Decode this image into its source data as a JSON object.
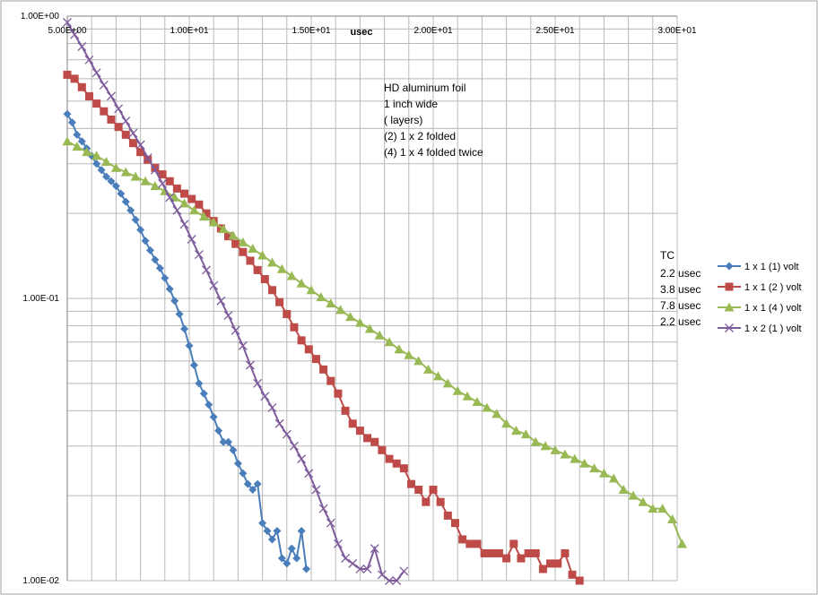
{
  "chart_data": {
    "type": "scatter",
    "title": "",
    "xlabel": "usec",
    "ylabel": "",
    "x_range": [
      5,
      30
    ],
    "y_range": [
      0.01,
      1
    ],
    "y_scale": "log",
    "grid": true,
    "legend_position": "right",
    "x_tick_labels": [
      "5.00E+00",
      "1.00E+01",
      "1.50E+01",
      "2.00E+01",
      "2.50E+01",
      "3.00E+01"
    ],
    "y_tick_labels": [
      "1.00E+00",
      "1.00E-01",
      "1.00E-02"
    ],
    "annotation_lines": [
      "HD aluminum foil",
      "1 inch wide",
      "( layers)",
      "(2) 1 x 2 folded",
      "(4) 1 x 4 folded twice"
    ],
    "tc": {
      "header": "TC",
      "values": [
        "2.2 usec",
        "3.8 usec",
        "7.8 usec",
        "2.2 usec"
      ]
    },
    "series": [
      {
        "name": "1 x 1 (1) volt",
        "color": "#4a7ebb",
        "marker": "diamond",
        "points": [
          [
            5.0,
            0.45
          ],
          [
            5.2,
            0.42
          ],
          [
            5.4,
            0.38
          ],
          [
            5.6,
            0.36
          ],
          [
            5.8,
            0.34
          ],
          [
            6.0,
            0.32
          ],
          [
            6.2,
            0.3
          ],
          [
            6.4,
            0.285
          ],
          [
            6.6,
            0.27
          ],
          [
            6.8,
            0.26
          ],
          [
            7.0,
            0.25
          ],
          [
            7.2,
            0.235
          ],
          [
            7.4,
            0.22
          ],
          [
            7.6,
            0.205
          ],
          [
            7.8,
            0.19
          ],
          [
            8.0,
            0.175
          ],
          [
            8.2,
            0.16
          ],
          [
            8.4,
            0.148
          ],
          [
            8.6,
            0.137
          ],
          [
            8.8,
            0.128
          ],
          [
            9.0,
            0.118
          ],
          [
            9.2,
            0.108
          ],
          [
            9.4,
            0.098
          ],
          [
            9.6,
            0.088
          ],
          [
            9.8,
            0.078
          ],
          [
            10.0,
            0.068
          ],
          [
            10.2,
            0.058
          ],
          [
            10.4,
            0.05
          ],
          [
            10.6,
            0.046
          ],
          [
            10.8,
            0.042
          ],
          [
            11.0,
            0.038
          ],
          [
            11.2,
            0.034
          ],
          [
            11.4,
            0.031
          ],
          [
            11.6,
            0.031
          ],
          [
            11.8,
            0.029
          ],
          [
            12.0,
            0.026
          ],
          [
            12.2,
            0.024
          ],
          [
            12.4,
            0.022
          ],
          [
            12.6,
            0.021
          ],
          [
            12.8,
            0.022
          ],
          [
            13.0,
            0.016
          ],
          [
            13.2,
            0.015
          ],
          [
            13.4,
            0.014
          ],
          [
            13.6,
            0.015
          ],
          [
            13.8,
            0.012
          ],
          [
            14.0,
            0.0115
          ],
          [
            14.2,
            0.013
          ],
          [
            14.4,
            0.012
          ],
          [
            14.6,
            0.015
          ],
          [
            14.8,
            0.011
          ]
        ]
      },
      {
        "name": "1 x 1 (2 ) volt",
        "color": "#be4b48",
        "marker": "square",
        "points": [
          [
            5.0,
            0.62
          ],
          [
            5.3,
            0.6
          ],
          [
            5.6,
            0.56
          ],
          [
            5.9,
            0.52
          ],
          [
            6.2,
            0.49
          ],
          [
            6.5,
            0.46
          ],
          [
            6.8,
            0.43
          ],
          [
            7.1,
            0.405
          ],
          [
            7.4,
            0.38
          ],
          [
            7.7,
            0.355
          ],
          [
            8.0,
            0.33
          ],
          [
            8.3,
            0.31
          ],
          [
            8.6,
            0.29
          ],
          [
            8.9,
            0.275
          ],
          [
            9.2,
            0.26
          ],
          [
            9.5,
            0.245
          ],
          [
            9.8,
            0.235
          ],
          [
            10.1,
            0.225
          ],
          [
            10.4,
            0.215
          ],
          [
            10.7,
            0.2
          ],
          [
            11.0,
            0.188
          ],
          [
            11.3,
            0.177
          ],
          [
            11.6,
            0.166
          ],
          [
            11.9,
            0.156
          ],
          [
            12.2,
            0.146
          ],
          [
            12.5,
            0.136
          ],
          [
            12.8,
            0.126
          ],
          [
            13.1,
            0.117
          ],
          [
            13.4,
            0.107
          ],
          [
            13.7,
            0.097
          ],
          [
            14.0,
            0.088
          ],
          [
            14.3,
            0.079
          ],
          [
            14.6,
            0.071
          ],
          [
            14.9,
            0.066
          ],
          [
            15.2,
            0.061
          ],
          [
            15.5,
            0.056
          ],
          [
            15.8,
            0.051
          ],
          [
            16.1,
            0.046
          ],
          [
            16.4,
            0.04
          ],
          [
            16.7,
            0.036
          ],
          [
            17.0,
            0.034
          ],
          [
            17.3,
            0.032
          ],
          [
            17.6,
            0.031
          ],
          [
            17.9,
            0.029
          ],
          [
            18.2,
            0.027
          ],
          [
            18.5,
            0.026
          ],
          [
            18.8,
            0.025
          ],
          [
            19.1,
            0.022
          ],
          [
            19.4,
            0.021
          ],
          [
            19.7,
            0.019
          ],
          [
            20.0,
            0.021
          ],
          [
            20.3,
            0.019
          ],
          [
            20.6,
            0.017
          ],
          [
            20.9,
            0.016
          ],
          [
            21.2,
            0.014
          ],
          [
            21.5,
            0.0135
          ],
          [
            21.8,
            0.0135
          ],
          [
            22.1,
            0.0125
          ],
          [
            22.4,
            0.0125
          ],
          [
            22.7,
            0.0125
          ],
          [
            23.0,
            0.012
          ],
          [
            23.3,
            0.0135
          ],
          [
            23.6,
            0.012
          ],
          [
            23.9,
            0.0125
          ],
          [
            24.2,
            0.0125
          ],
          [
            24.5,
            0.011
          ],
          [
            24.8,
            0.0115
          ],
          [
            25.1,
            0.0115
          ],
          [
            25.4,
            0.0125
          ],
          [
            25.7,
            0.0105
          ],
          [
            26.0,
            0.0095
          ]
        ]
      },
      {
        "name": "1 x 1 (4 ) volt",
        "color": "#98b954",
        "marker": "triangle",
        "points": [
          [
            5.0,
            0.36
          ],
          [
            5.4,
            0.345
          ],
          [
            5.8,
            0.33
          ],
          [
            6.2,
            0.32
          ],
          [
            6.6,
            0.305
          ],
          [
            7.0,
            0.29
          ],
          [
            7.4,
            0.28
          ],
          [
            7.8,
            0.27
          ],
          [
            8.2,
            0.26
          ],
          [
            8.6,
            0.25
          ],
          [
            9.0,
            0.24
          ],
          [
            9.4,
            0.228
          ],
          [
            9.8,
            0.217
          ],
          [
            10.2,
            0.205
          ],
          [
            10.6,
            0.195
          ],
          [
            11.0,
            0.186
          ],
          [
            11.4,
            0.176
          ],
          [
            11.8,
            0.167
          ],
          [
            12.2,
            0.158
          ],
          [
            12.6,
            0.15
          ],
          [
            13.0,
            0.142
          ],
          [
            13.4,
            0.134
          ],
          [
            13.8,
            0.127
          ],
          [
            14.2,
            0.12
          ],
          [
            14.6,
            0.113
          ],
          [
            15.0,
            0.107
          ],
          [
            15.4,
            0.101
          ],
          [
            15.8,
            0.096
          ],
          [
            16.2,
            0.091
          ],
          [
            16.6,
            0.086
          ],
          [
            17.0,
            0.082
          ],
          [
            17.4,
            0.078
          ],
          [
            17.8,
            0.074
          ],
          [
            18.2,
            0.07
          ],
          [
            18.6,
            0.066
          ],
          [
            19.0,
            0.063
          ],
          [
            19.4,
            0.06
          ],
          [
            19.8,
            0.056
          ],
          [
            20.2,
            0.053
          ],
          [
            20.6,
            0.05
          ],
          [
            21.0,
            0.047
          ],
          [
            21.4,
            0.045
          ],
          [
            21.8,
            0.043
          ],
          [
            22.2,
            0.041
          ],
          [
            22.6,
            0.039
          ],
          [
            23.0,
            0.036
          ],
          [
            23.4,
            0.034
          ],
          [
            23.8,
            0.033
          ],
          [
            24.2,
            0.031
          ],
          [
            24.6,
            0.03
          ],
          [
            25.0,
            0.029
          ],
          [
            25.4,
            0.028
          ],
          [
            25.8,
            0.027
          ],
          [
            26.2,
            0.026
          ],
          [
            26.6,
            0.025
          ],
          [
            27.0,
            0.024
          ],
          [
            27.4,
            0.023
          ],
          [
            27.8,
            0.021
          ],
          [
            28.2,
            0.02
          ],
          [
            28.6,
            0.019
          ],
          [
            29.0,
            0.018
          ],
          [
            29.4,
            0.018
          ],
          [
            29.8,
            0.0165
          ],
          [
            30.2,
            0.0135
          ]
        ]
      },
      {
        "name": "1 x 2 (1 ) volt",
        "color": "#7e5c9b",
        "marker": "x",
        "points": [
          [
            5.0,
            0.95
          ],
          [
            5.3,
            0.86
          ],
          [
            5.6,
            0.78
          ],
          [
            5.9,
            0.7
          ],
          [
            6.2,
            0.63
          ],
          [
            6.5,
            0.57
          ],
          [
            6.8,
            0.52
          ],
          [
            7.1,
            0.47
          ],
          [
            7.4,
            0.425
          ],
          [
            7.7,
            0.385
          ],
          [
            8.0,
            0.35
          ],
          [
            8.3,
            0.315
          ],
          [
            8.6,
            0.285
          ],
          [
            8.9,
            0.255
          ],
          [
            9.2,
            0.228
          ],
          [
            9.5,
            0.205
          ],
          [
            9.8,
            0.183
          ],
          [
            10.1,
            0.162
          ],
          [
            10.4,
            0.143
          ],
          [
            10.7,
            0.126
          ],
          [
            11.0,
            0.111
          ],
          [
            11.3,
            0.098
          ],
          [
            11.6,
            0.087
          ],
          [
            11.9,
            0.077
          ],
          [
            12.2,
            0.068
          ],
          [
            12.5,
            0.058
          ],
          [
            12.8,
            0.05
          ],
          [
            13.1,
            0.045
          ],
          [
            13.4,
            0.041
          ],
          [
            13.7,
            0.036
          ],
          [
            14.0,
            0.033
          ],
          [
            14.3,
            0.03
          ],
          [
            14.6,
            0.027
          ],
          [
            14.9,
            0.024
          ],
          [
            15.2,
            0.021
          ],
          [
            15.5,
            0.018
          ],
          [
            15.8,
            0.016
          ],
          [
            16.1,
            0.0135
          ],
          [
            16.4,
            0.012
          ],
          [
            16.7,
            0.0115
          ],
          [
            17.0,
            0.011
          ],
          [
            17.3,
            0.011
          ],
          [
            17.6,
            0.013
          ],
          [
            17.9,
            0.0105
          ],
          [
            18.2,
            0.01
          ],
          [
            18.5,
            0.01
          ],
          [
            18.8,
            0.0108
          ]
        ]
      }
    ]
  }
}
